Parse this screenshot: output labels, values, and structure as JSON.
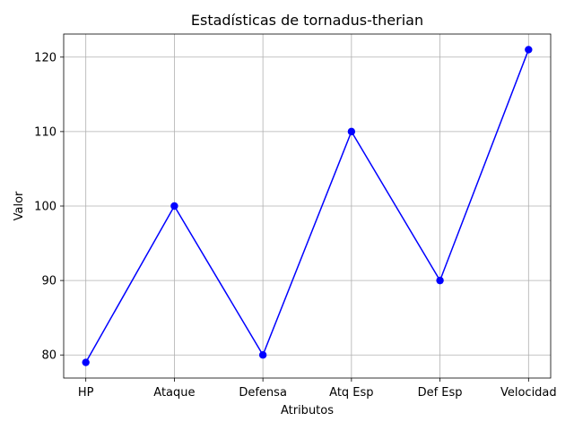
{
  "chart_data": {
    "type": "line",
    "title": "Estadísticas de tornadus-therian",
    "xlabel": "Atributos",
    "ylabel": "Valor",
    "categories": [
      "HP",
      "Ataque",
      "Defensa",
      "Atq Esp",
      "Def Esp",
      "Velocidad"
    ],
    "series": [
      {
        "values": [
          79,
          100,
          80,
          110,
          90,
          121
        ],
        "color": "#0000ff",
        "marker": "circle"
      }
    ],
    "ylim": [
      76.9,
      123.1
    ],
    "yticks": [
      80,
      90,
      100,
      110,
      120
    ],
    "grid": true,
    "legend": "none"
  }
}
